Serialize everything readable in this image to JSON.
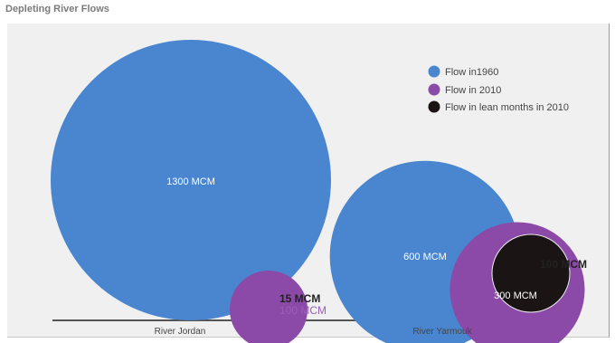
{
  "chart_data": {
    "type": "bubble",
    "title": "Depleting River Flows",
    "categories": [
      "River Jordan",
      "River Yarmouk"
    ],
    "series": [
      {
        "name": "Flow in1960",
        "color": "#4a86cf",
        "values": [
          1300,
          600
        ]
      },
      {
        "name": "Flow in 2010",
        "color": "#8b49a8",
        "values": [
          100,
          300
        ]
      },
      {
        "name": "Flow in lean months in 2010",
        "color": "#1a1414",
        "values": [
          15,
          100
        ]
      }
    ],
    "labels": {
      "jordan_1960": "1300 MCM",
      "jordan_lean": "15 MCM",
      "jordan_2010": "100 MCM",
      "yarmouk_1960": "600 MCM",
      "yarmouk_2010": "300 MCM",
      "yarmouk_lean": "100 MCM"
    },
    "legend_position": "top-right",
    "grid": false
  }
}
